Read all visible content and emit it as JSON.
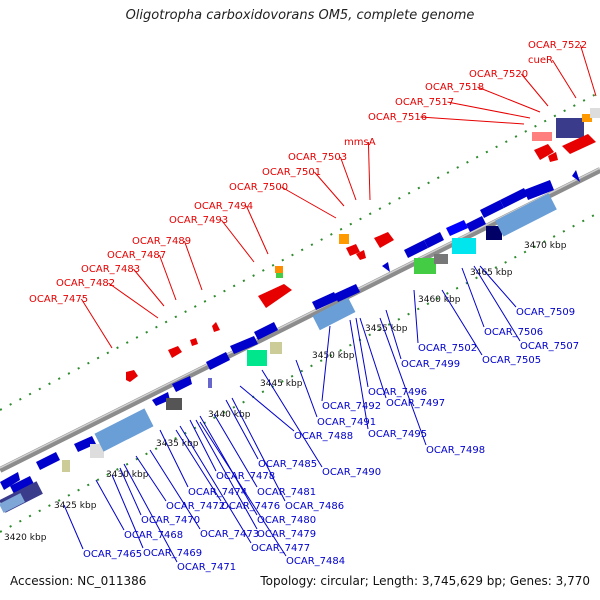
{
  "title": "Oligotropha carboxidovorans OM5, complete genome",
  "footer": {
    "accession": "Accession: NC_011386",
    "topology": "Topology: circular; Length: 3,745,629 bp; Genes: 3,770"
  },
  "colors": {
    "forward_label": "#e60000",
    "reverse_label": "#0000cc",
    "backbone": "#8c8c8c",
    "tick": "#2e8b2e"
  },
  "scale_labels": [
    "3420 kbp",
    "3425 kbp",
    "3430 kbp",
    "3435 kbp",
    "3440 kbp",
    "3445 kbp",
    "3450 kbp",
    "3455 kbp",
    "3460 kbp",
    "3465 kbp",
    "3470 kbp"
  ],
  "forward_labels": [
    "OCAR_7475",
    "OCAR_7482",
    "OCAR_7483",
    "OCAR_7487",
    "OCAR_7489",
    "OCAR_7493",
    "OCAR_7494",
    "OCAR_7500",
    "OCAR_7501",
    "OCAR_7503",
    "mmsA",
    "OCAR_7516",
    "OCAR_7517",
    "OCAR_7518",
    "OCAR_7520",
    "cueR",
    "OCAR_7522"
  ],
  "reverse_labels": [
    "OCAR_7465",
    "OCAR_7468",
    "OCAR_7469",
    "OCAR_7470",
    "OCAR_7471",
    "OCAR_7472",
    "OCAR_7473",
    "OCAR_7474",
    "OCAR_7476",
    "OCAR_7477",
    "OCAR_7478",
    "OCAR_7479",
    "OCAR_7480",
    "OCAR_7481",
    "OCAR_7484",
    "OCAR_7485",
    "OCAR_7486",
    "OCAR_7488",
    "OCAR_7490",
    "OCAR_7491",
    "OCAR_7492",
    "OCAR_7495",
    "OCAR_7496",
    "OCAR_7497",
    "OCAR_7498",
    "OCAR_7499",
    "OCAR_7502",
    "OCAR_7505",
    "OCAR_7506",
    "OCAR_7507",
    "OCAR_7509"
  ]
}
